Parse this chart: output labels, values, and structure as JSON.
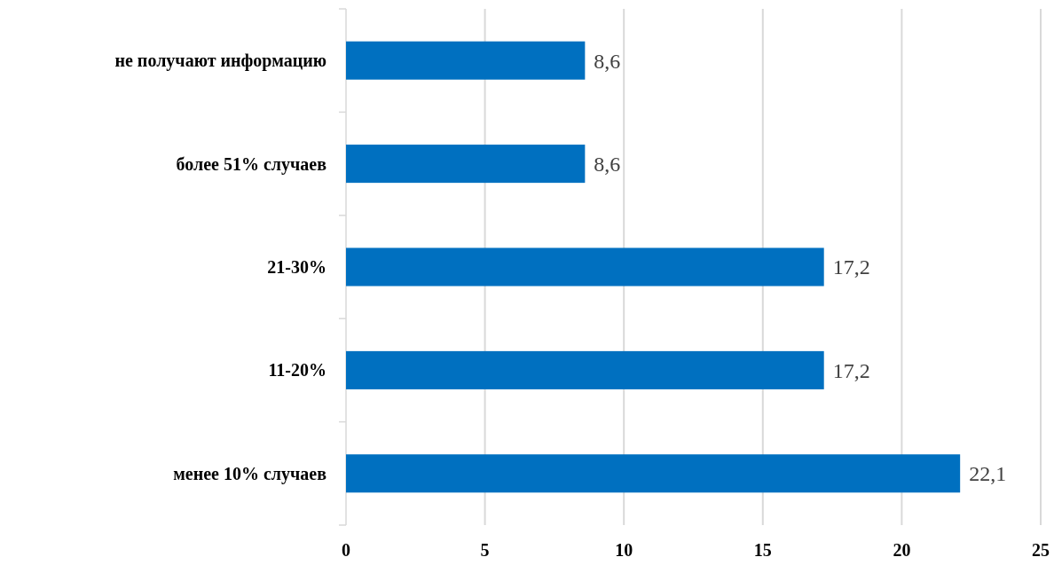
{
  "chart_data": {
    "type": "bar",
    "orientation": "horizontal",
    "categories": [
      "не получают информацию",
      "более 51% случаев",
      "21-30% ",
      "11-20% ",
      "менее 10% случаев"
    ],
    "values": [
      8.6,
      8.6,
      17.2,
      17.2,
      22.1
    ],
    "value_labels": [
      "8,6",
      "8,6",
      "17,2",
      "17,2",
      "22,1"
    ],
    "color": "#0070c0",
    "xlim": [
      0,
      25
    ],
    "xticks": [
      0,
      5,
      10,
      15,
      20,
      25
    ],
    "grid": "x"
  }
}
